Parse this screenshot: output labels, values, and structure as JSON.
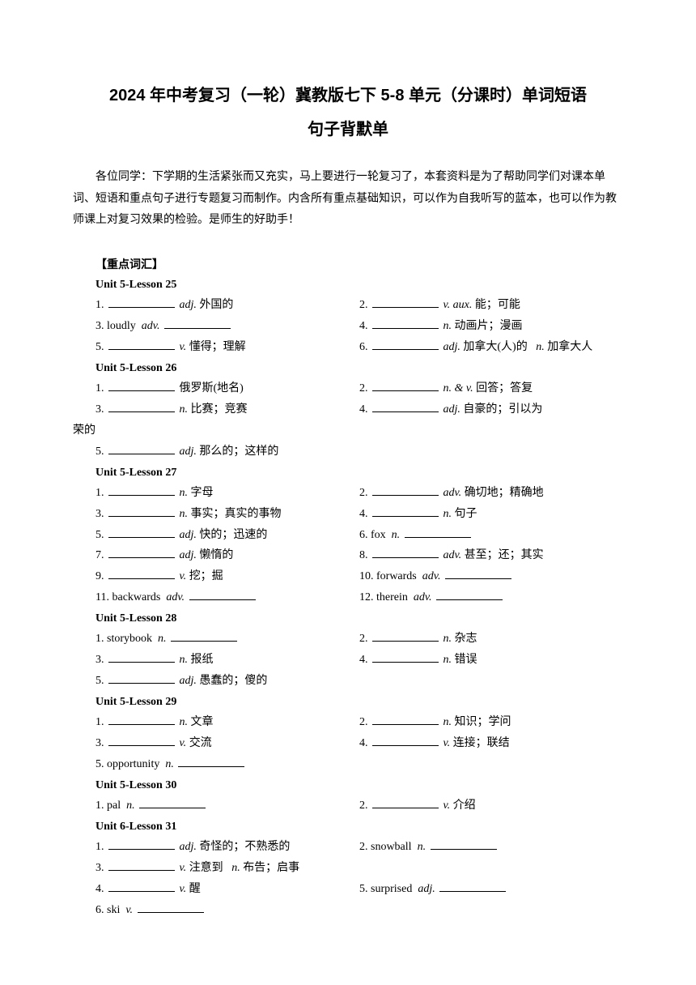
{
  "title_line1": "2024 年中考复习（一轮）冀教版七下 5-8 单元（分课时）单词短语",
  "title_line2": "句子背默单",
  "intro": "各位同学：下学期的生活紧张而又充实，马上要进行一轮复习了，本套资料是为了帮助同学们对课本单词、短语和重点句子进行专题复习而制作。内含所有重点基础知识，可以作为自我听写的蓝本，也可以作为教师课上对复习效果的检验。是师生的好助手！",
  "section_head": "【重点词汇】",
  "units": [
    {
      "head": "Unit 5-Lesson 25",
      "items": [
        {
          "num": "1.",
          "style": "blank_pos",
          "pos": "adj.",
          "cn": "外国的"
        },
        {
          "num": "2.",
          "style": "blank_pos",
          "pos": "v. aux.",
          "cn": "能；可能"
        },
        {
          "num": "3.",
          "style": "word_pos_blank",
          "word": "loudly",
          "pos": "adv."
        },
        {
          "num": "4.",
          "style": "blank_pos",
          "pos": "n.",
          "cn": "动画片；漫画"
        },
        {
          "num": "5.",
          "style": "blank_pos",
          "pos": "v.",
          "cn": "懂得；理解"
        },
        {
          "num": "6.",
          "style": "blank_pos_extra",
          "pos": "adj.",
          "cn": "加拿大(人)的",
          "epos": "n.",
          "ecn": "加拿大人"
        }
      ]
    },
    {
      "head": "Unit 5-Lesson 26",
      "items": [
        {
          "num": "1.",
          "style": "blank_cn",
          "cn": "俄罗斯(地名)"
        },
        {
          "num": "2.",
          "style": "blank_pos",
          "pos": "n. & v.",
          "cn": "回答；答复"
        },
        {
          "num": "3.",
          "style": "blank_pos",
          "pos": "n.",
          "cn": "比赛；竞赛"
        },
        {
          "num": "4.",
          "style": "blank_pos_wrap",
          "pos": "adj.",
          "cn": "自豪的；引以为",
          "wrap": "荣的"
        },
        {
          "num": "5.",
          "style": "blank_pos",
          "pos": "adj.",
          "cn": "那么的；这样的"
        }
      ]
    },
    {
      "head": "Unit 5-Lesson 27",
      "items": [
        {
          "num": "1.",
          "style": "blank_pos",
          "pos": "n.",
          "cn": "字母"
        },
        {
          "num": "2.",
          "style": "blank_pos",
          "pos": "adv.",
          "cn": "确切地；精确地"
        },
        {
          "num": "3.",
          "style": "blank_pos",
          "pos": "n.",
          "cn": "事实；真实的事物"
        },
        {
          "num": "4.",
          "style": "blank_pos",
          "pos": "n.",
          "cn": "句子"
        },
        {
          "num": "5.",
          "style": "blank_pos",
          "pos": "adj.",
          "cn": "快的；迅速的"
        },
        {
          "num": "6.",
          "style": "word_pos_blank",
          "word": "fox",
          "pos": "n."
        },
        {
          "num": "7.",
          "style": "blank_pos",
          "pos": "adj.",
          "cn": "懒惰的"
        },
        {
          "num": "8.",
          "style": "blank_pos",
          "pos": "adv.",
          "cn": "甚至；还；其实"
        },
        {
          "num": "9.",
          "style": "blank_pos",
          "pos": "v.",
          "cn": "挖；掘"
        },
        {
          "num": "10.",
          "style": "word_pos_blank",
          "word": "forwards",
          "pos": "adv."
        },
        {
          "num": "11.",
          "style": "word_pos_blank",
          "word": "backwards",
          "pos": "adv."
        },
        {
          "num": "12.",
          "style": "word_pos_blank",
          "word": "therein",
          "pos": "adv."
        }
      ]
    },
    {
      "head": "Unit 5-Lesson 28",
      "items": [
        {
          "num": "1.",
          "style": "word_pos_blank",
          "word": "storybook",
          "pos": "n."
        },
        {
          "num": "2.",
          "style": "blank_pos",
          "pos": "n.",
          "cn": "杂志"
        },
        {
          "num": "3.",
          "style": "blank_pos",
          "pos": "n.",
          "cn": "报纸"
        },
        {
          "num": "4.",
          "style": "blank_pos",
          "pos": "n.",
          "cn": "错误"
        },
        {
          "num": "5.",
          "style": "blank_pos",
          "pos": "adj.",
          "cn": "愚蠢的；傻的"
        }
      ]
    },
    {
      "head": "Unit 5-Lesson 29",
      "items": [
        {
          "num": "1.",
          "style": "blank_pos",
          "pos": "n.",
          "cn": "文章"
        },
        {
          "num": "2.",
          "style": "blank_pos",
          "pos": "n.",
          "cn": "知识；学问"
        },
        {
          "num": "3.",
          "style": "blank_pos",
          "pos": "v.",
          "cn": "交流"
        },
        {
          "num": "4.",
          "style": "blank_pos",
          "pos": "v.",
          "cn": "连接；联结"
        },
        {
          "num": "5.",
          "style": "word_pos_blank",
          "word": "opportunity",
          "pos": "n."
        }
      ]
    },
    {
      "head": "Unit 5-Lesson 30",
      "items": [
        {
          "num": "1.",
          "style": "word_pos_blank",
          "word": "pal",
          "pos": "n."
        },
        {
          "num": "2.",
          "style": "blank_pos",
          "pos": "v.",
          "cn": "介绍"
        }
      ]
    },
    {
      "head": "Unit 6-Lesson 31",
      "items": [
        {
          "num": "1.",
          "style": "blank_pos",
          "pos": "adj.",
          "cn": "奇怪的；不熟悉的"
        },
        {
          "num": "2.",
          "style": "word_pos_blank",
          "word": "snowball",
          "pos": "n."
        },
        {
          "num": "3.",
          "style": "blank_pos_extra",
          "pos": "v.",
          "cn": "注意到",
          "epos": "n.",
          "ecn": "布告；启事"
        },
        {
          "num": "4.",
          "style": "blank_pos",
          "pos": "v.",
          "cn": "醒"
        },
        {
          "num": "5.",
          "style": "word_pos_blank",
          "word": "surprised",
          "pos": "adj."
        },
        {
          "num": "6.",
          "style": "word_pos_blank",
          "word": "ski",
          "pos": "v."
        }
      ]
    }
  ]
}
